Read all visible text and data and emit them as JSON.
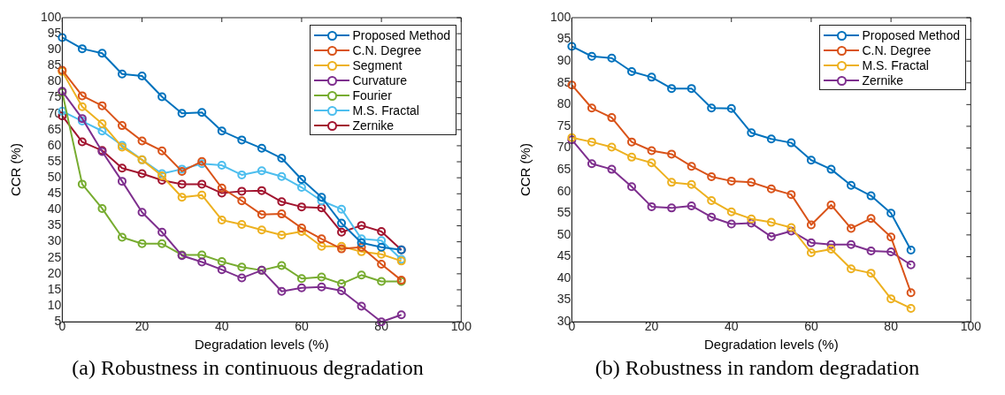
{
  "chart_data": [
    {
      "type": "line",
      "xlabel": "Degradation levels (%)",
      "ylabel": "CCR (%)",
      "x": [
        0,
        5,
        10,
        15,
        20,
        25,
        30,
        35,
        40,
        45,
        50,
        55,
        60,
        65,
        70,
        75,
        80,
        85
      ],
      "xlim": [
        0,
        100
      ],
      "xticks": [
        0,
        20,
        40,
        60,
        80,
        100
      ],
      "ylim": [
        5,
        100
      ],
      "yticks": [
        5,
        10,
        15,
        20,
        25,
        30,
        35,
        40,
        45,
        50,
        55,
        60,
        65,
        70,
        75,
        80,
        85,
        90,
        95,
        100
      ],
      "grid": false,
      "legend": "top right",
      "marker": "circle",
      "line_style": "solid",
      "annotations": [
        "(a) Robustness in continuous degradation"
      ],
      "series": [
        {
          "name": "Proposed Method",
          "color": "#0072bd",
          "values": [
            93.8,
            90.3,
            88.9,
            82.4,
            81.8,
            75.3,
            70.1,
            70.4,
            64.6,
            61.8,
            59.2,
            56.1,
            49.5,
            43.9,
            35.8,
            29.7,
            28.3,
            27.5
          ]
        },
        {
          "name": "C.N. Degree",
          "color": "#d95319",
          "values": [
            83.6,
            75.6,
            72.5,
            66.3,
            61.5,
            58.4,
            52.0,
            55.1,
            46.8,
            42.8,
            38.5,
            38.7,
            34.3,
            30.9,
            27.8,
            28.3,
            23.0,
            18.0
          ]
        },
        {
          "name": "Segment",
          "color": "#edb120",
          "values": [
            83.2,
            72.2,
            66.9,
            59.6,
            55.6,
            50.6,
            43.9,
            44.6,
            36.8,
            35.4,
            33.7,
            32.1,
            33.2,
            28.6,
            28.6,
            26.9,
            26.1,
            24.0
          ]
        },
        {
          "name": "Curvature",
          "color": "#7e2f8e",
          "values": [
            77.0,
            68.5,
            58.2,
            48.9,
            39.2,
            33.0,
            25.7,
            23.7,
            21.3,
            18.7,
            21.1,
            14.5,
            15.6,
            15.9,
            14.7,
            9.9,
            5,
            7.2
          ]
        },
        {
          "name": "Fourier",
          "color": "#77ac30",
          "values": [
            76.7,
            48.0,
            40.4,
            31.4,
            29.4,
            29.4,
            25.9,
            25.9,
            23.8,
            22.1,
            21.1,
            22.6,
            18.5,
            19.0,
            16.9,
            19.6,
            17.6,
            17.6
          ]
        },
        {
          "name": "M.S. Fractal",
          "color": "#4dbeee",
          "values": [
            70.8,
            67.7,
            64.6,
            60.1,
            55.6,
            51.3,
            52.7,
            54.4,
            53.9,
            50.9,
            52.2,
            50.4,
            47.0,
            42.8,
            40.2,
            30.9,
            30.4,
            24.5
          ]
        },
        {
          "name": "Zernike",
          "color": "#a2142f",
          "values": [
            69.3,
            61.2,
            58.5,
            53.0,
            51.3,
            49.2,
            48.0,
            48.0,
            45.2,
            45.8,
            46.0,
            42.5,
            40.9,
            40.6,
            33.0,
            35.1,
            33.2,
            27.5
          ]
        }
      ]
    },
    {
      "type": "line",
      "xlabel": "Degradation levels (%)",
      "ylabel": "CCR (%)",
      "x": [
        0,
        5,
        10,
        15,
        20,
        25,
        30,
        35,
        40,
        45,
        50,
        55,
        60,
        65,
        70,
        75,
        80,
        85
      ],
      "xlim": [
        0,
        100
      ],
      "xticks": [
        0,
        20,
        40,
        60,
        80,
        100
      ],
      "ylim": [
        30,
        100
      ],
      "yticks": [
        30,
        35,
        40,
        45,
        50,
        55,
        60,
        65,
        70,
        75,
        80,
        85,
        90,
        95,
        100
      ],
      "grid": false,
      "legend": "top right",
      "marker": "circle",
      "line_style": "solid",
      "annotations": [
        "(b) Robustness in random degradation"
      ],
      "series": [
        {
          "name": "Proposed Method",
          "color": "#0072bd",
          "values": [
            93.4,
            91.1,
            90.7,
            87.6,
            86.3,
            83.7,
            83.7,
            79.2,
            79.1,
            73.5,
            72.1,
            71.2,
            67.2,
            65.1,
            61.4,
            59.0,
            55.0,
            46.5
          ]
        },
        {
          "name": "C.N. Degree",
          "color": "#d95319",
          "values": [
            84.5,
            79.2,
            77.0,
            71.4,
            69.4,
            68.6,
            65.8,
            63.4,
            62.4,
            62.1,
            60.6,
            59.3,
            52.3,
            56.9,
            51.5,
            53.8,
            49.5,
            36.7
          ]
        },
        {
          "name": "M.S. Fractal",
          "color": "#edb120",
          "values": [
            72.4,
            71.4,
            70.2,
            67.9,
            66.6,
            62.1,
            61.6,
            57.9,
            55.3,
            53.7,
            52.9,
            51.7,
            45.9,
            46.7,
            42.2,
            41.2,
            35.3,
            33.1
          ]
        },
        {
          "name": "Zernike",
          "color": "#7e2f8e",
          "values": [
            71.9,
            66.4,
            65.1,
            61.1,
            56.5,
            56.2,
            56.7,
            54.1,
            52.5,
            52.7,
            49.6,
            50.9,
            48.2,
            47.8,
            47.8,
            46.3,
            46.1,
            43.1
          ]
        }
      ]
    }
  ]
}
